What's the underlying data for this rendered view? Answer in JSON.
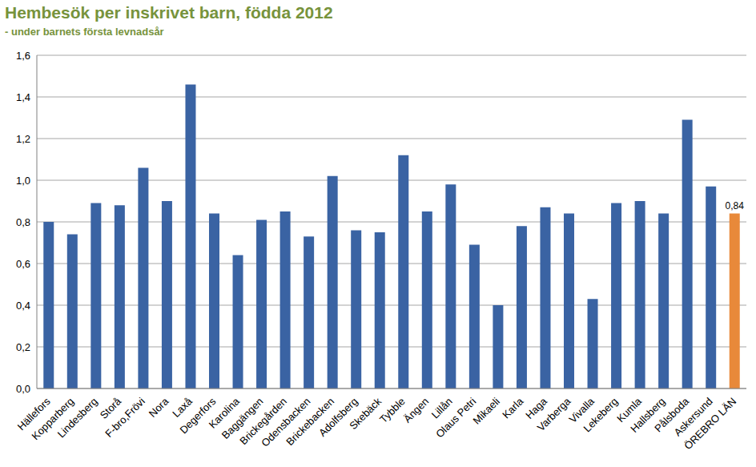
{
  "chart_data": {
    "type": "bar",
    "title": "Hembesök per inskrivet barn, födda 2012",
    "subtitle": "- under barnets första levnadsår",
    "categories": [
      "Hällefors",
      "Kopparberg",
      "Lindesberg",
      "Storå",
      "F-bro,Frövi",
      "Nora",
      "Laxå",
      "Degerfors",
      "Karolina",
      "Baggängen",
      "Brickegården",
      "Odensbacken",
      "Brickebacken",
      "Adolfsberg",
      "Skebäck",
      "Tybble",
      "Ängen",
      "Lillån",
      "Olaus Petri",
      "Mikaeli",
      "Karla",
      "Haga",
      "Varberga",
      "Vivalla",
      "Lekeberg",
      "Kumla",
      "Hallsberg",
      "Pålsboda",
      "Askersund",
      "ÖREBRO LÄN"
    ],
    "values": [
      0.8,
      0.74,
      0.89,
      0.88,
      1.06,
      0.9,
      1.46,
      0.84,
      0.64,
      0.81,
      0.85,
      0.73,
      1.02,
      0.76,
      0.75,
      1.12,
      0.85,
      0.98,
      0.69,
      0.4,
      0.78,
      0.87,
      0.84,
      0.43,
      0.89,
      0.9,
      0.84,
      1.29,
      0.97,
      0.84
    ],
    "value_labels": [
      null,
      null,
      null,
      null,
      null,
      null,
      null,
      null,
      null,
      null,
      null,
      null,
      null,
      null,
      null,
      null,
      null,
      null,
      null,
      null,
      null,
      null,
      null,
      null,
      null,
      null,
      null,
      null,
      null,
      "0,84"
    ],
    "colors": [
      "#3a63a3",
      "#3a63a3",
      "#3a63a3",
      "#3a63a3",
      "#3a63a3",
      "#3a63a3",
      "#3a63a3",
      "#3a63a3",
      "#3a63a3",
      "#3a63a3",
      "#3a63a3",
      "#3a63a3",
      "#3a63a3",
      "#3a63a3",
      "#3a63a3",
      "#3a63a3",
      "#3a63a3",
      "#3a63a3",
      "#3a63a3",
      "#3a63a3",
      "#3a63a3",
      "#3a63a3",
      "#3a63a3",
      "#3a63a3",
      "#3a63a3",
      "#3a63a3",
      "#3a63a3",
      "#3a63a3",
      "#3a63a3",
      "#e8893a"
    ],
    "ylim": [
      0,
      1.6
    ],
    "yticks": [
      {
        "value": 0,
        "label": "0,0"
      },
      {
        "value": 0.2,
        "label": "0,2"
      },
      {
        "value": 0.4,
        "label": "0,4"
      },
      {
        "value": 0.6,
        "label": "0,6"
      },
      {
        "value": 0.8,
        "label": "0,8"
      },
      {
        "value": 1.0,
        "label": "1,0"
      },
      {
        "value": 1.2,
        "label": "1,2"
      },
      {
        "value": 1.4,
        "label": "1,4"
      },
      {
        "value": 1.6,
        "label": "1,6"
      }
    ],
    "grid": true
  }
}
